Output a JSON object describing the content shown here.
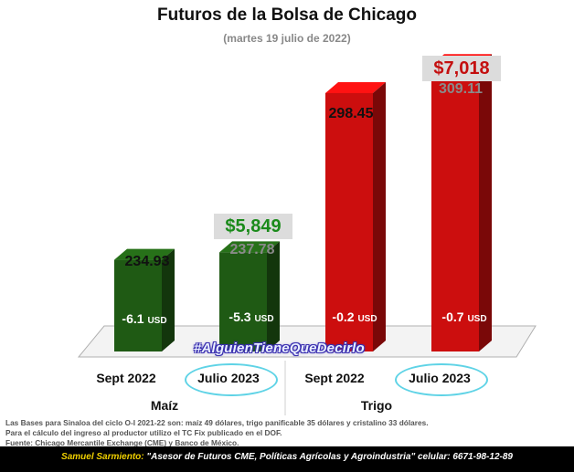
{
  "title": "Futuros de la Bolsa de Chicago",
  "subtitle": "(martes 19 julio de 2022)",
  "watermark": "#AlguienTieneQueDecirlo",
  "chart_data": {
    "type": "bar",
    "categories": [
      "Sept 2022",
      "Julio 2023",
      "Sept 2022",
      "Julio 2023"
    ],
    "groups": [
      {
        "name": "Maíz",
        "categories": [
          "Sept 2022",
          "Julio 2023"
        ]
      },
      {
        "name": "Trigo",
        "categories": [
          "Sept 2022",
          "Julio 2023"
        ]
      }
    ],
    "values": [
      234.93,
      237.78,
      298.45,
      309.11
    ],
    "value_labels": [
      "234.93",
      "237.78",
      "298.45",
      "309.11"
    ],
    "basis_labels": [
      {
        "value": "-6.1",
        "unit": "USD"
      },
      {
        "value": "-5.3",
        "unit": "USD"
      },
      {
        "value": "-0.2",
        "unit": "USD"
      },
      {
        "value": "-0.7",
        "unit": "USD"
      }
    ],
    "price_labels": {
      "maiz_julio_2023": "$5,849",
      "trigo_julio_2023": "$7,018"
    },
    "highlighted_categories": [
      1,
      3
    ],
    "colors": {
      "maiz": "#1f5a14",
      "trigo": "#cc0e0e",
      "maiz_price": "#1a8a1a",
      "trigo_price": "#c40f0f",
      "highlight_oval": "#5fd3e6",
      "first_value": "#111111",
      "second_value": "#8a8a8a"
    },
    "ylim": [
      200,
      320
    ],
    "grid": false,
    "legend": "none"
  },
  "notes": [
    "Las Bases para Sinaloa del ciclo O-I 2021-22 son: maíz 49 dólares, trigo panificable 35 dólares y cristalino 33 dólares.",
    "Para el cálculo del ingreso al productor utilizo el TC Fix publicado en el DOF.",
    "Fuente: Chicago Mercantile Exchange (CME) y Banco de México."
  ],
  "footer": {
    "name": "Samuel Sarmiento:",
    "description": "\"Asesor de Futuros CME, Políticas Agrícolas y Agroindustria\"",
    "phone": "celular: 6671-98-12-89"
  }
}
